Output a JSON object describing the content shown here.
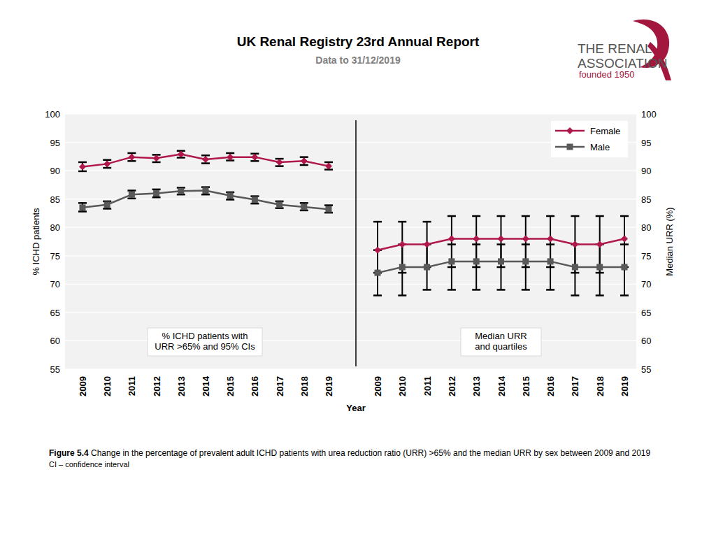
{
  "header": {
    "title": "UK Renal Registry 23rd Annual Report",
    "subtitle": "Data to 31/12/2019"
  },
  "logo": {
    "lines": [
      "THE RENAL",
      "ASSOCIATION",
      "founded 1950"
    ]
  },
  "caption": {
    "label": "Figure 5.4",
    "text": "Change in the percentage of prevalent adult ICHD patients with urea reduction ratio (URR) >65% and the median URR by sex between 2009 and 2019",
    "note": "CI – confidence interval"
  },
  "x_axis_title": "Year",
  "chart_data": [
    {
      "type": "line",
      "y_label": "% ICHD patients",
      "annotation": [
        "% ICHD patients with",
        "URR >65% and 95% CIs"
      ],
      "categories": [
        "2009",
        "2010",
        "2011",
        "2012",
        "2013",
        "2014",
        "2015",
        "2016",
        "2017",
        "2018",
        "2019"
      ],
      "ylim": [
        55,
        100
      ],
      "yticks": [
        55,
        60,
        65,
        70,
        75,
        80,
        85,
        90,
        95,
        100
      ],
      "grid": true,
      "series": [
        {
          "color": "#b0174a",
          "marker": "diamond",
          "values": [
            90.7,
            91.2,
            92.4,
            92.2,
            92.9,
            92.0,
            92.4,
            92.4,
            91.5,
            91.7,
            90.8
          ],
          "ci_low": [
            89.9,
            90.5,
            91.7,
            91.5,
            92.3,
            91.3,
            91.8,
            91.7,
            90.8,
            91.0,
            90.2
          ],
          "ci_high": [
            91.5,
            91.9,
            93.1,
            92.8,
            93.5,
            92.7,
            93.1,
            93.0,
            92.1,
            92.4,
            91.5
          ]
        },
        {
          "color": "#595959",
          "marker": "square",
          "values": [
            83.5,
            84.0,
            85.8,
            86.0,
            86.4,
            86.5,
            85.6,
            84.9,
            84.0,
            83.6,
            83.2
          ],
          "ci_low": [
            82.8,
            83.3,
            85.1,
            85.3,
            85.8,
            85.8,
            84.9,
            84.2,
            83.4,
            83.0,
            82.6
          ],
          "ci_high": [
            84.3,
            84.6,
            86.5,
            86.7,
            87.0,
            87.1,
            86.2,
            85.5,
            84.6,
            84.3,
            83.9
          ]
        }
      ]
    },
    {
      "type": "line",
      "y_label": "Median URR (%)",
      "annotation": [
        "Median URR",
        "and quartiles"
      ],
      "legend": "upper right",
      "categories": [
        "2009",
        "2010",
        "2011",
        "2012",
        "2013",
        "2014",
        "2015",
        "2016",
        "2017",
        "2018",
        "2019"
      ],
      "ylim": [
        55,
        100
      ],
      "yticks": [
        55,
        60,
        65,
        70,
        75,
        80,
        85,
        90,
        95,
        100
      ],
      "grid": true,
      "series": [
        {
          "name": "Female",
          "color": "#b0174a",
          "marker": "diamond",
          "values": [
            76,
            77,
            77,
            78,
            78,
            78,
            78,
            78,
            77,
            77,
            78
          ],
          "q1": [
            72,
            72,
            73,
            73,
            73,
            73,
            73,
            73,
            72,
            72,
            73
          ],
          "q3": [
            81,
            81,
            81,
            82,
            82,
            82,
            82,
            82,
            82,
            82,
            82
          ]
        },
        {
          "name": "Male",
          "color": "#595959",
          "marker": "square",
          "values": [
            72,
            73,
            73,
            74,
            74,
            74,
            74,
            74,
            73,
            73,
            73
          ],
          "q1": [
            68,
            68,
            69,
            69,
            69,
            69,
            69,
            69,
            68,
            68,
            68
          ],
          "q3": [
            76,
            77,
            77,
            77,
            77,
            77,
            77,
            77,
            77,
            77,
            77
          ]
        }
      ]
    }
  ]
}
